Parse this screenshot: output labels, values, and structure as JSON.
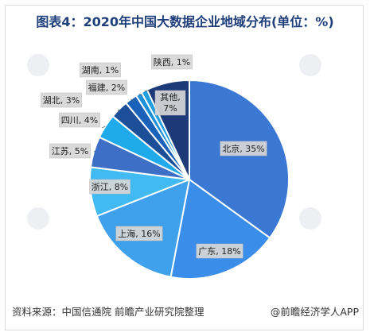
{
  "title": "图表4：2020年中国大数据企业地域分布(单位：%)",
  "footer": {
    "source": "资料来源：中国信通院 前瞻产业研究院整理",
    "brand": "@前瞻经济学人APP"
  },
  "chart_data": {
    "type": "pie",
    "title": "图表4：2020年中国大数据企业地域分布(单位：%)",
    "slices": [
      {
        "label": "北京, 35%",
        "value": 35,
        "color": "#3a78d4"
      },
      {
        "label": "广东, 18%",
        "value": 18,
        "color": "#3a8eea"
      },
      {
        "label": "上海, 16%",
        "value": 16,
        "color": "#3fa0ec"
      },
      {
        "label": "浙江, 8%",
        "value": 8,
        "color": "#41b9f2"
      },
      {
        "label": "江苏, 5%",
        "value": 5,
        "color": "#3e6fc6"
      },
      {
        "label": "四川, 4%",
        "value": 4,
        "color": "#1eaaeb"
      },
      {
        "label": "湖北, 3%",
        "value": 3,
        "color": "#1d4f98"
      },
      {
        "label": "福建, 2%",
        "value": 2,
        "color": "#1a62b9"
      },
      {
        "label": "湖南, 1%",
        "value": 1,
        "color": "#1b8fd9"
      },
      {
        "label": "陕西, 1%",
        "value": 1,
        "color": "#1f9ee0"
      },
      {
        "label": "其他, 7%",
        "value": 7,
        "color": "#1c3a78"
      }
    ]
  }
}
